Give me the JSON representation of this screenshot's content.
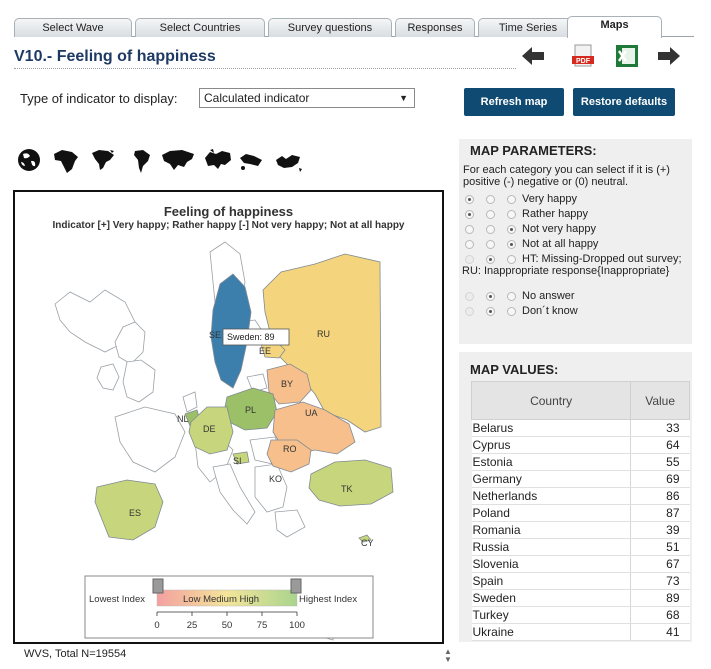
{
  "tabs": [
    {
      "label": "Select Wave"
    },
    {
      "label": "Select Countries"
    },
    {
      "label": "Survey questions"
    },
    {
      "label": "Responses"
    },
    {
      "label": "Time Series"
    },
    {
      "label": "Maps"
    }
  ],
  "page_title": "V10.- Feeling of happiness",
  "indicator": {
    "label": "Type of indicator to display:",
    "selected": "Calculated indicator"
  },
  "buttons": {
    "refresh": "Refresh map",
    "restore": "Restore defaults"
  },
  "map": {
    "title": "Feeling of happiness",
    "subtitle": "Indicator [+] Very happy; Rather happy [-] Not very happy; Not at all happy",
    "tooltip": "Sweden: 89",
    "country_labels": [
      "SE",
      "RU",
      "EE",
      "BY",
      "PL",
      "UA",
      "NL",
      "DE",
      "RO",
      "SI",
      "KO",
      "TK",
      "ES",
      "CY"
    ],
    "legend": {
      "lowest": "Lowest Index",
      "highest": "Highest Index",
      "bar_text": "Low  Medium High",
      "ticks": [
        "0",
        "25",
        "50",
        "75",
        "100"
      ]
    },
    "colors": {
      "high": "#3c7fac",
      "upper": "#9cc068",
      "mid": "#c7d67c",
      "lower": "#f4d57e",
      "low": "#f6bf8c",
      "nodata": "#ffffff"
    }
  },
  "params": {
    "title": "MAP PARAMETERS:",
    "description": "For each category you can select if it is (+) positive (-) negative or (0) neutral.",
    "rows": [
      {
        "label": "Very happy",
        "sel": 0
      },
      {
        "label": "Rather happy",
        "sel": 0
      },
      {
        "label": "Not very happy",
        "sel": 2
      },
      {
        "label": "Not at all happy",
        "sel": 2
      },
      {
        "label": "HT: Missing-Dropped out survey; RU: Inappropriate response{Inappropriate}",
        "sel": 1
      },
      {
        "label": "No answer",
        "sel": 1
      },
      {
        "label": "Don´t know",
        "sel": 1
      }
    ]
  },
  "values": {
    "title": "MAP VALUES:",
    "headers": {
      "country": "Country",
      "value": "Value"
    },
    "rows": [
      {
        "country": "Belarus",
        "value": "33"
      },
      {
        "country": "Cyprus",
        "value": "64"
      },
      {
        "country": "Estonia",
        "value": "55"
      },
      {
        "country": "Germany",
        "value": "69"
      },
      {
        "country": "Netherlands",
        "value": "86"
      },
      {
        "country": "Poland",
        "value": "87"
      },
      {
        "country": "Romania",
        "value": "39"
      },
      {
        "country": "Russia",
        "value": "51"
      },
      {
        "country": "Slovenia",
        "value": "67"
      },
      {
        "country": "Spain",
        "value": "73"
      },
      {
        "country": "Sweden",
        "value": "89"
      },
      {
        "country": "Turkey",
        "value": "68"
      },
      {
        "country": "Ukraine",
        "value": "41"
      }
    ]
  },
  "footer": "WVS, Total N=19554"
}
